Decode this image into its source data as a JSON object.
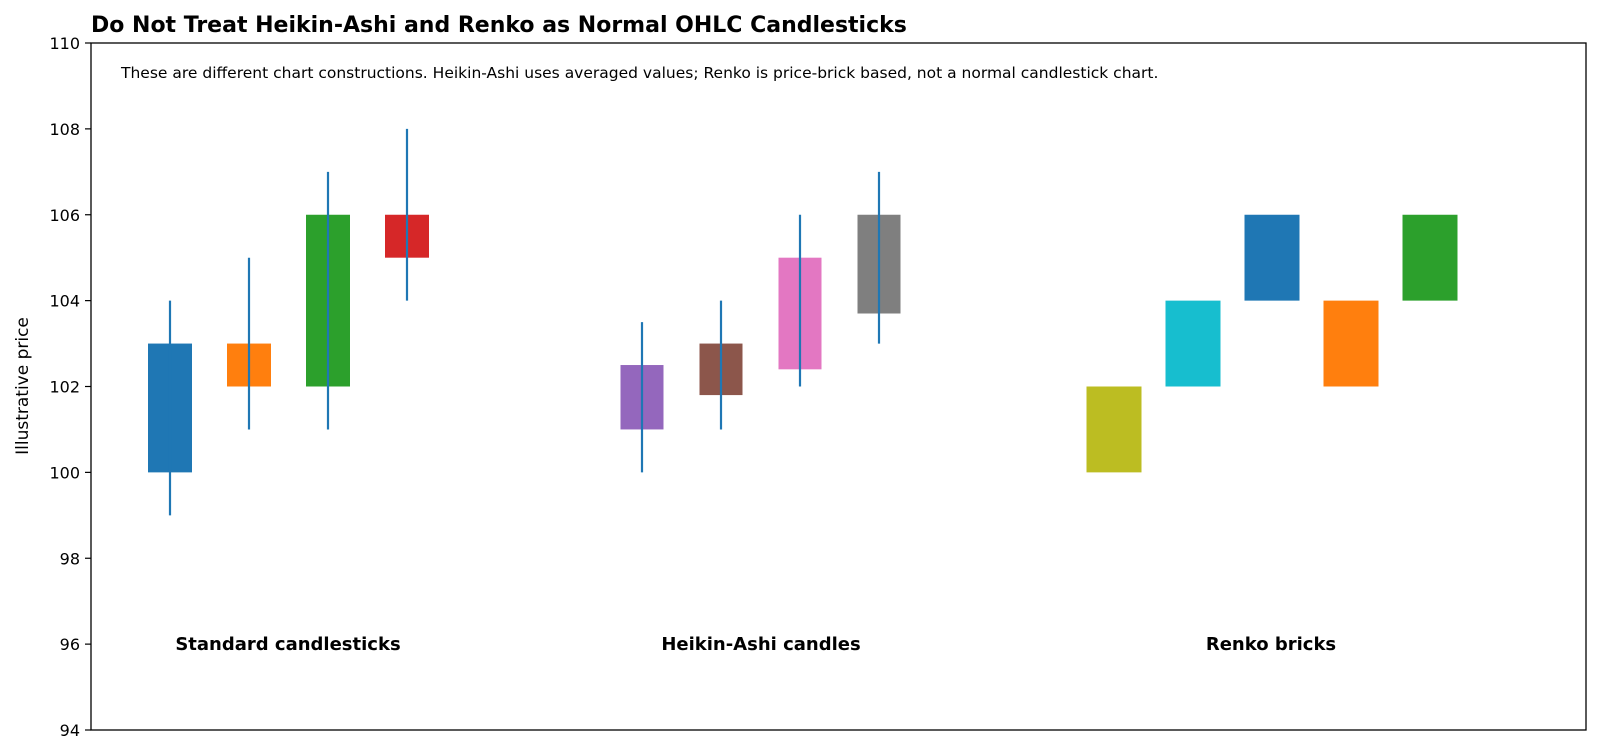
{
  "chart_data": {
    "type": "candlestick",
    "title": "Do Not Treat Heikin-Ashi and Renko as Normal OHLC Candlesticks",
    "ylabel": "Illustrative price",
    "xlabel": "",
    "ylim": [
      94,
      110
    ],
    "yticks": [
      94,
      96,
      98,
      100,
      102,
      104,
      106,
      108,
      110
    ],
    "grid": false,
    "annotation": "These are different chart constructions. Heikin-Ashi uses averaged values; Renko is price-brick based, not a normal candlestick chart.",
    "wick_color": "#1f77b4",
    "groups": [
      {
        "name": "Standard candlesticks",
        "kind": "candles",
        "items": [
          {
            "open": 100,
            "close": 103,
            "low": 99,
            "high": 104,
            "color": "#1f77b4"
          },
          {
            "open": 102,
            "close": 103,
            "low": 101,
            "high": 105,
            "color": "#ff7f0e"
          },
          {
            "open": 102,
            "close": 106,
            "low": 101,
            "high": 107,
            "color": "#2ca02c"
          },
          {
            "open": 105,
            "close": 106,
            "low": 104,
            "high": 108,
            "color": "#d62728"
          }
        ]
      },
      {
        "name": "Heikin-Ashi candles",
        "kind": "candles",
        "items": [
          {
            "open": 101,
            "close": 102.5,
            "low": 100,
            "high": 103.5,
            "color": "#9467bd"
          },
          {
            "open": 101.8,
            "close": 103,
            "low": 101,
            "high": 104,
            "color": "#8c564b"
          },
          {
            "open": 102.4,
            "close": 105,
            "low": 102,
            "high": 106,
            "color": "#e377c2"
          },
          {
            "open": 103.7,
            "close": 106,
            "low": 103,
            "high": 107,
            "color": "#7f7f7f"
          }
        ]
      },
      {
        "name": "Renko bricks",
        "kind": "bricks",
        "items": [
          {
            "low": 100,
            "high": 102,
            "color": "#bcbd22"
          },
          {
            "low": 102,
            "high": 104,
            "color": "#17becf"
          },
          {
            "low": 104,
            "high": 106,
            "color": "#1f77b4"
          },
          {
            "low": 102,
            "high": 104,
            "color": "#ff7f0e"
          },
          {
            "low": 104,
            "high": 106,
            "color": "#2ca02c"
          }
        ]
      }
    ]
  }
}
